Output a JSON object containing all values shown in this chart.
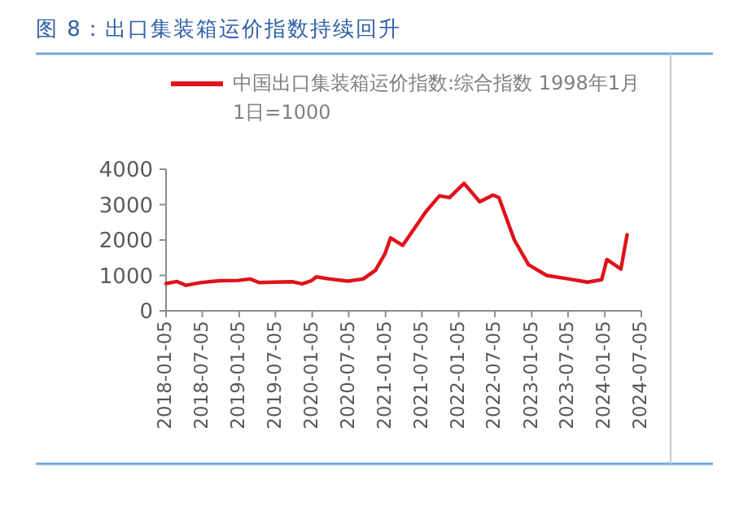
{
  "chart_data": {
    "type": "line",
    "title": "图 8：出口集装箱运价指数持续回升",
    "legend": "top",
    "marker": "none",
    "line_style": "solid",
    "grid": false,
    "xlim": [
      "2018-01-05",
      "2024-07-05"
    ],
    "ylim": [
      0,
      4000
    ],
    "yticks": [
      0,
      1000,
      2000,
      3000,
      4000
    ],
    "xticks": [
      "2018-01-05",
      "2018-07-05",
      "2019-01-05",
      "2019-07-05",
      "2020-01-05",
      "2020-07-05",
      "2021-01-05",
      "2021-07-05",
      "2022-01-05",
      "2022-07-05",
      "2023-01-05",
      "2023-07-05",
      "2024-01-05",
      "2024-07-05"
    ],
    "series": [
      {
        "name": "中国出口集装箱运价指数:综合指数 1998年1月1日=1000",
        "color": "#e0121b",
        "x": [
          "2018-01-05",
          "2018-03-01",
          "2018-04-15",
          "2018-07-01",
          "2018-10-01",
          "2019-01-01",
          "2019-03-01",
          "2019-04-15",
          "2019-07-01",
          "2019-10-01",
          "2019-11-15",
          "2020-01-01",
          "2020-01-25",
          "2020-04-01",
          "2020-07-01",
          "2020-09-15",
          "2020-11-15",
          "2021-01-01",
          "2021-01-30",
          "2021-04-01",
          "2021-07-25",
          "2021-10-01",
          "2021-11-20",
          "2022-02-01",
          "2022-04-20",
          "2022-06-25",
          "2022-07-25",
          "2022-10-10",
          "2022-12-20",
          "2023-03-20",
          "2023-07-10",
          "2023-10-10",
          "2023-12-20",
          "2024-01-15",
          "2024-03-25",
          "2024-04-25"
        ],
        "values": [
          770,
          830,
          720,
          800,
          850,
          860,
          900,
          800,
          810,
          820,
          760,
          850,
          960,
          900,
          840,
          900,
          1140,
          1600,
          2060,
          1850,
          2800,
          3250,
          3200,
          3600,
          3080,
          3270,
          3200,
          2000,
          1300,
          1000,
          900,
          810,
          880,
          1450,
          1180,
          2150
        ]
      }
    ]
  }
}
